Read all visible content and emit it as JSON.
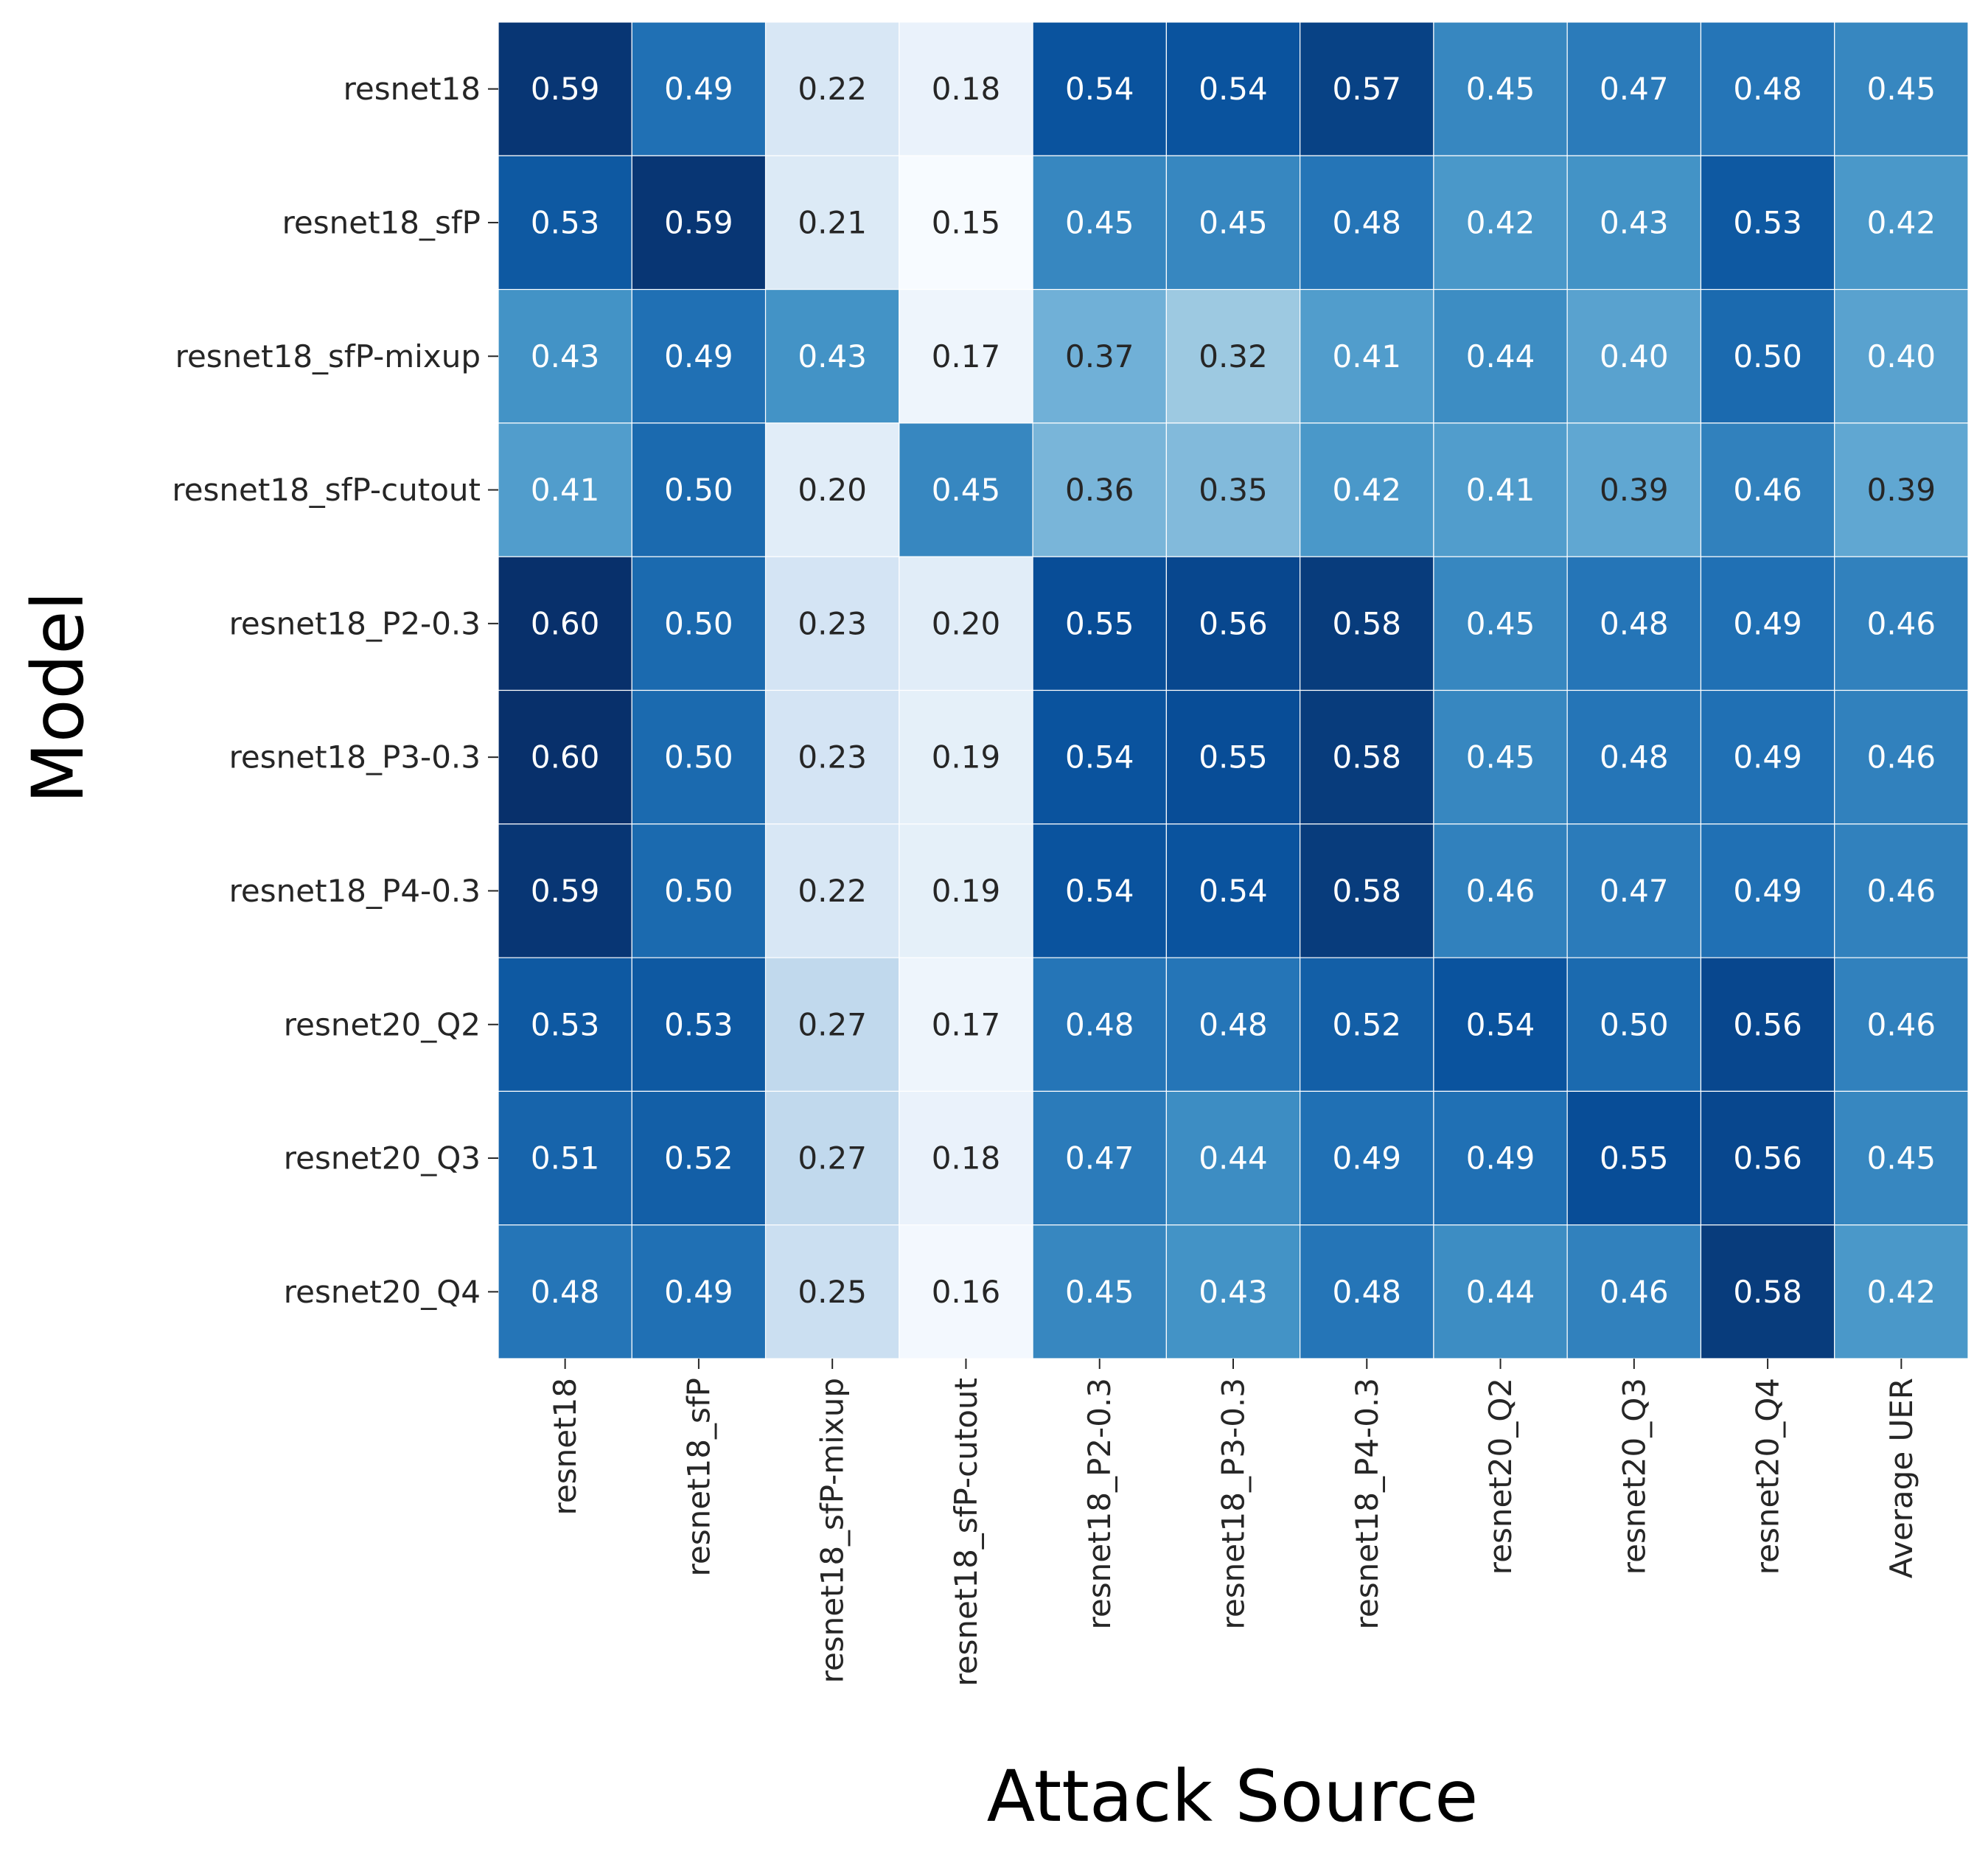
{
  "chart_data": {
    "type": "heatmap",
    "title": "",
    "xlabel": "Attack Source",
    "ylabel": "Model",
    "x_categories": [
      "resnet18",
      "resnet18_sfP",
      "resnet18_sfP-mixup",
      "resnet18_sfP-cutout",
      "resnet18_P2-0.3",
      "resnet18_P3-0.3",
      "resnet18_P4-0.3",
      "resnet20_Q2",
      "resnet20_Q3",
      "resnet20_Q4",
      "Average UER"
    ],
    "y_categories": [
      "resnet18",
      "resnet18_sfP",
      "resnet18_sfP-mixup",
      "resnet18_sfP-cutout",
      "resnet18_P2-0.3",
      "resnet18_P3-0.3",
      "resnet18_P4-0.3",
      "resnet20_Q2",
      "resnet20_Q3",
      "resnet20_Q4"
    ],
    "values": [
      [
        "0.59",
        "0.49",
        "0.22",
        "0.18",
        "0.54",
        "0.54",
        "0.57",
        "0.45",
        "0.47",
        "0.48",
        "0.45"
      ],
      [
        "0.53",
        "0.59",
        "0.21",
        "0.15",
        "0.45",
        "0.45",
        "0.48",
        "0.42",
        "0.43",
        "0.53",
        "0.42"
      ],
      [
        "0.43",
        "0.49",
        "0.43",
        "0.17",
        "0.37",
        "0.32",
        "0.41",
        "0.44",
        "0.40",
        "0.50",
        "0.40"
      ],
      [
        "0.41",
        "0.50",
        "0.20",
        "0.45",
        "0.36",
        "0.35",
        "0.42",
        "0.41",
        "0.39",
        "0.46",
        "0.39"
      ],
      [
        "0.60",
        "0.50",
        "0.23",
        "0.20",
        "0.55",
        "0.56",
        "0.58",
        "0.45",
        "0.48",
        "0.49",
        "0.46"
      ],
      [
        "0.60",
        "0.50",
        "0.23",
        "0.19",
        "0.54",
        "0.55",
        "0.58",
        "0.45",
        "0.48",
        "0.49",
        "0.46"
      ],
      [
        "0.59",
        "0.50",
        "0.22",
        "0.19",
        "0.54",
        "0.54",
        "0.58",
        "0.46",
        "0.47",
        "0.49",
        "0.46"
      ],
      [
        "0.53",
        "0.53",
        "0.27",
        "0.17",
        "0.48",
        "0.48",
        "0.52",
        "0.54",
        "0.50",
        "0.56",
        "0.46"
      ],
      [
        "0.51",
        "0.52",
        "0.27",
        "0.18",
        "0.47",
        "0.44",
        "0.49",
        "0.49",
        "0.55",
        "0.56",
        "0.45"
      ],
      [
        "0.48",
        "0.49",
        "0.25",
        "0.16",
        "0.45",
        "0.43",
        "0.48",
        "0.44",
        "0.46",
        "0.58",
        "0.42"
      ]
    ],
    "colormap": "Blues",
    "value_range": [
      0.15,
      0.6
    ],
    "colorbar": false,
    "cell_border_color": "#ffffff"
  }
}
